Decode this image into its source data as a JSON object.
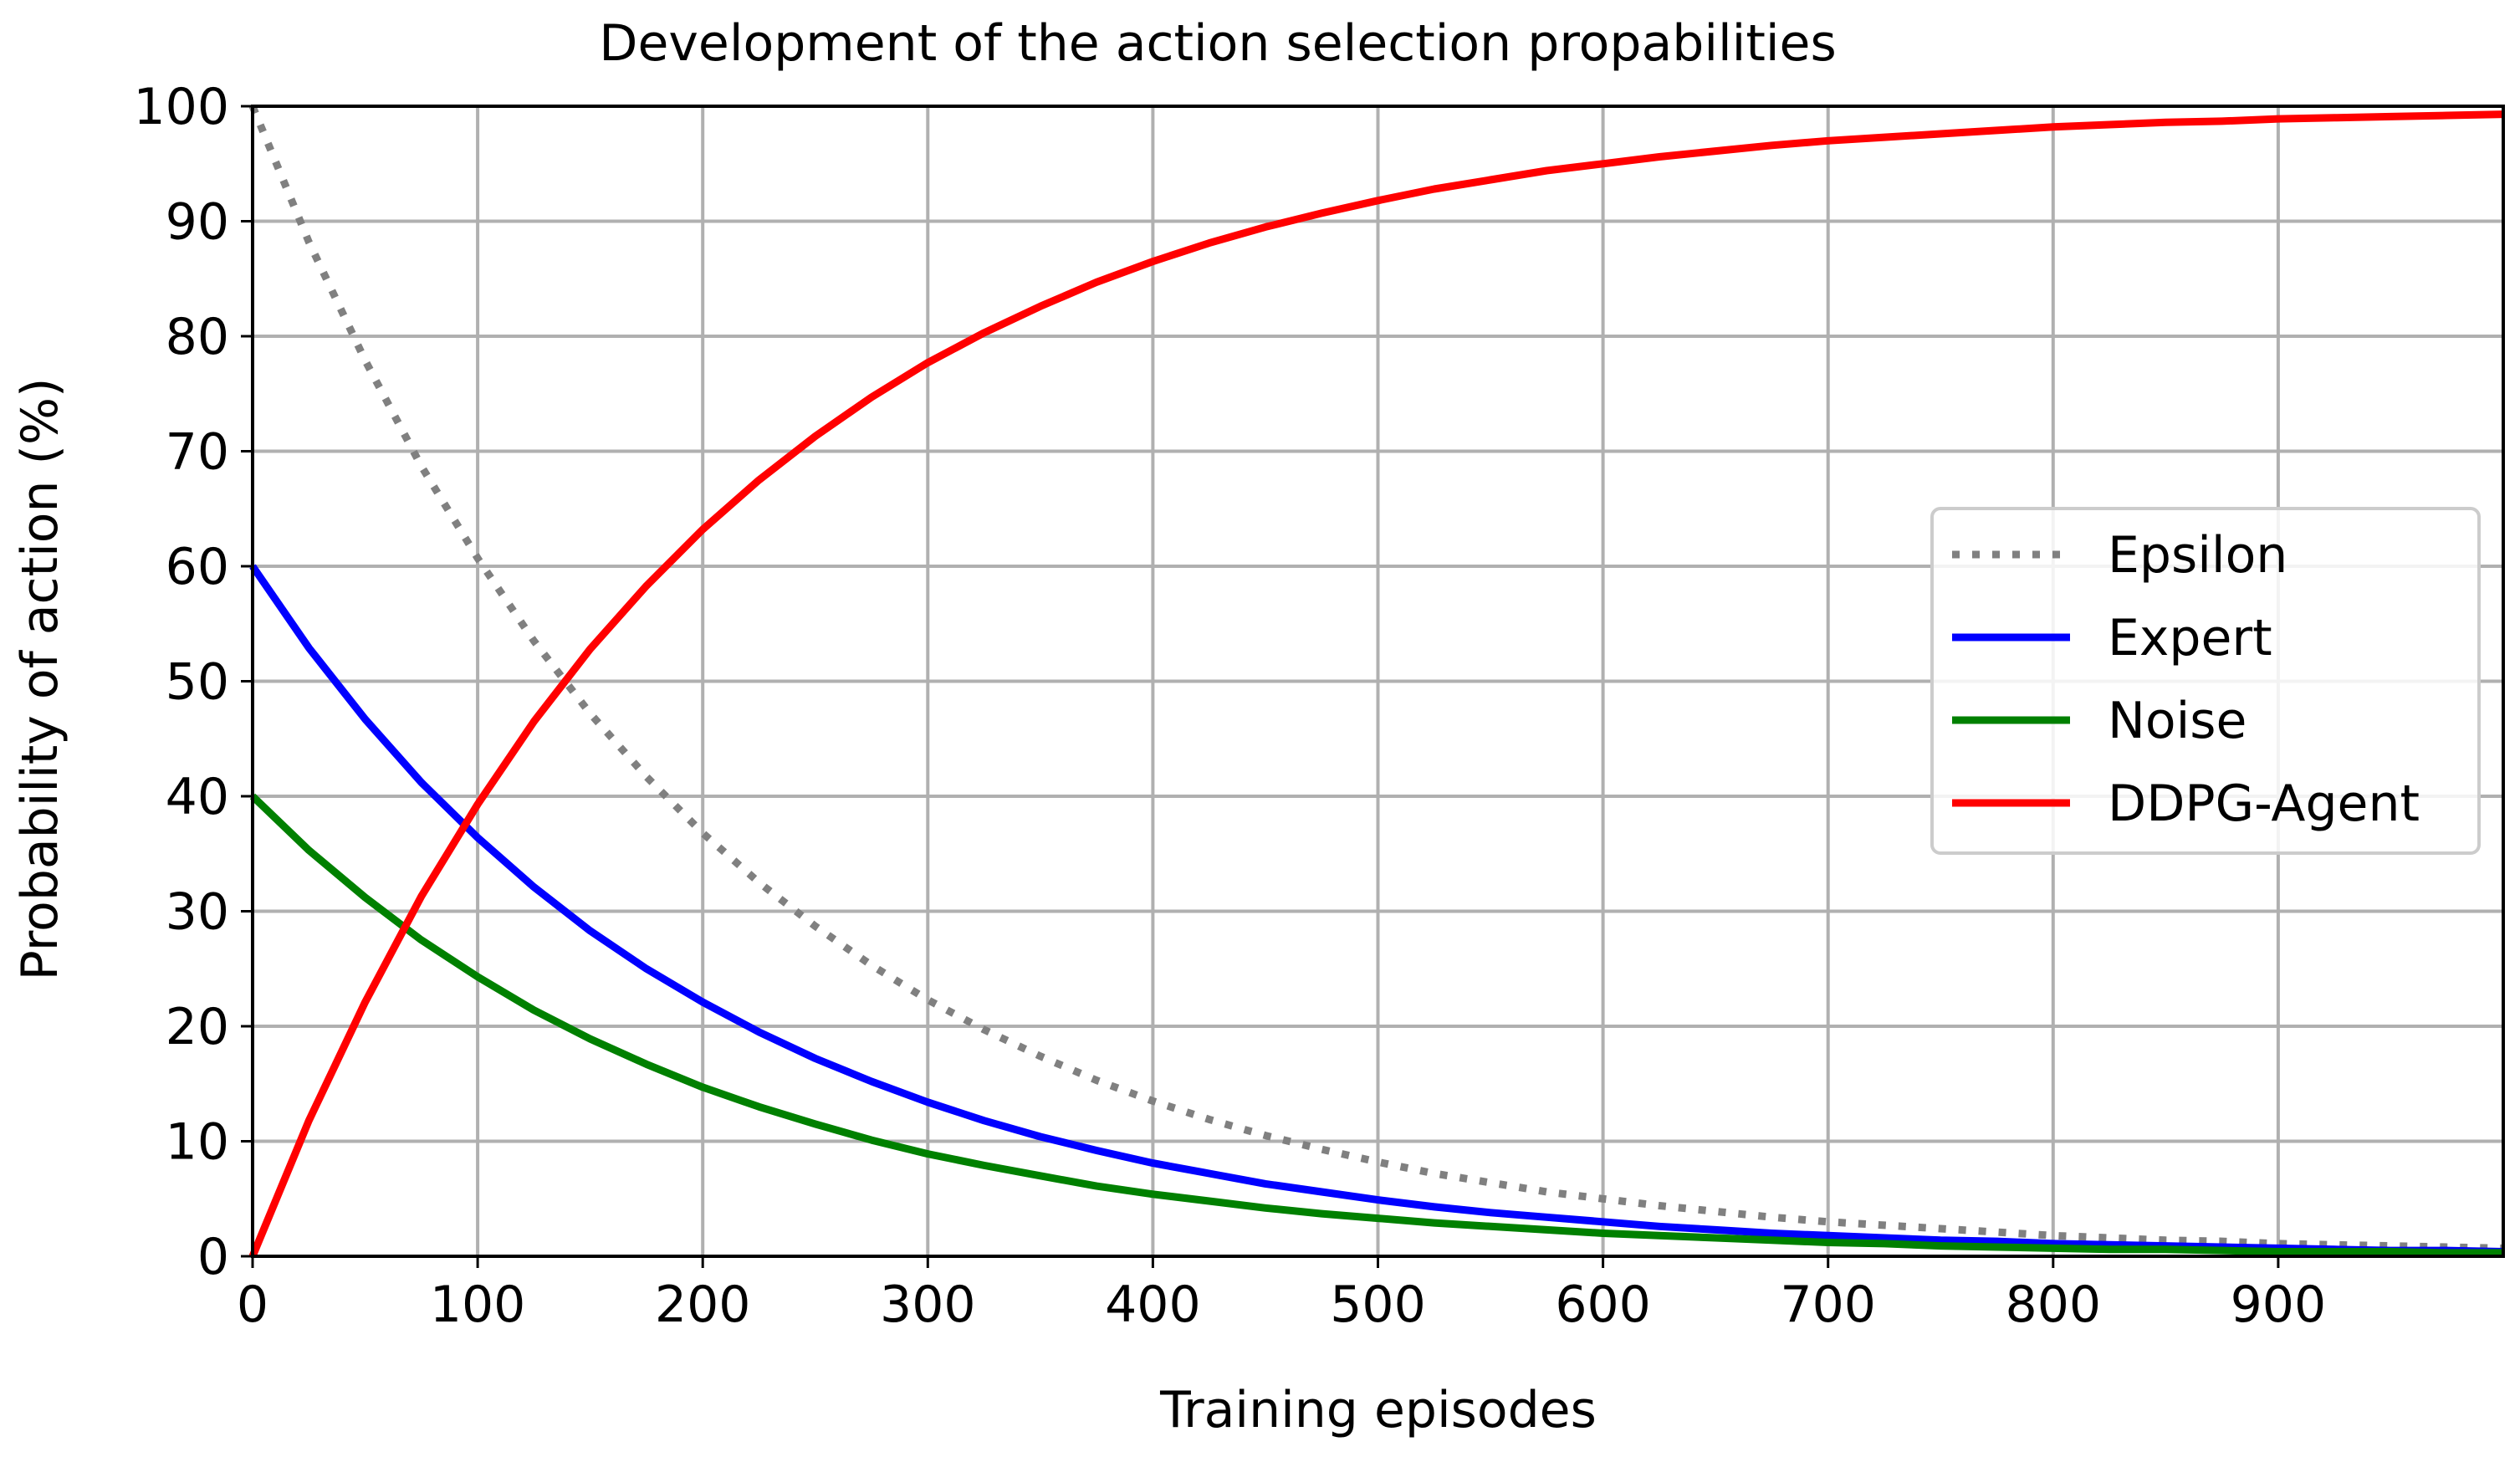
{
  "chart_data": {
    "type": "line",
    "title": "Development of the action selection propabilities",
    "xlabel": "Training episodes",
    "ylabel": "Probability of action (%)",
    "xlim": [
      0,
      1000
    ],
    "ylim": [
      0,
      100
    ],
    "xticks": [
      0,
      100,
      200,
      300,
      400,
      500,
      600,
      700,
      800,
      900
    ],
    "yticks": [
      0,
      10,
      20,
      30,
      40,
      50,
      60,
      70,
      80,
      90,
      100
    ],
    "grid": true,
    "legend_position": "center-right",
    "x": [
      0,
      25,
      50,
      75,
      100,
      125,
      150,
      175,
      200,
      225,
      250,
      275,
      300,
      325,
      350,
      375,
      400,
      425,
      450,
      475,
      500,
      525,
      550,
      575,
      600,
      625,
      650,
      675,
      700,
      725,
      750,
      775,
      800,
      825,
      850,
      875,
      900,
      925,
      950,
      975,
      1000
    ],
    "series": [
      {
        "name": "Epsilon",
        "color": "#808080",
        "style": "dotted",
        "values": [
          100,
          88.2,
          77.9,
          68.7,
          60.7,
          53.5,
          47.2,
          41.7,
          36.8,
          32.5,
          28.7,
          25.3,
          22.3,
          19.7,
          17.4,
          15.3,
          13.5,
          11.9,
          10.5,
          9.3,
          8.2,
          7.2,
          6.4,
          5.6,
          5.0,
          4.4,
          3.9,
          3.4,
          3.0,
          2.7,
          2.4,
          2.1,
          1.8,
          1.6,
          1.4,
          1.3,
          1.1,
          1.0,
          0.9,
          0.8,
          0.7
        ]
      },
      {
        "name": "Expert",
        "color": "#0000ff",
        "style": "solid",
        "values": [
          60,
          52.9,
          46.7,
          41.2,
          36.4,
          32.1,
          28.3,
          25.0,
          22.1,
          19.5,
          17.2,
          15.2,
          13.4,
          11.8,
          10.4,
          9.2,
          8.1,
          7.2,
          6.3,
          5.6,
          4.9,
          4.3,
          3.8,
          3.4,
          3.0,
          2.6,
          2.3,
          2.0,
          1.8,
          1.6,
          1.4,
          1.3,
          1.1,
          1.0,
          0.9,
          0.8,
          0.7,
          0.6,
          0.5,
          0.5,
          0.4
        ]
      },
      {
        "name": "Noise",
        "color": "#008000",
        "style": "solid",
        "values": [
          40,
          35.3,
          31.2,
          27.5,
          24.3,
          21.4,
          18.9,
          16.7,
          14.7,
          13.0,
          11.5,
          10.1,
          8.9,
          7.9,
          7.0,
          6.1,
          5.4,
          4.8,
          4.2,
          3.7,
          3.3,
          2.9,
          2.6,
          2.3,
          2.0,
          1.8,
          1.6,
          1.4,
          1.2,
          1.1,
          0.9,
          0.8,
          0.7,
          0.6,
          0.6,
          0.5,
          0.4,
          0.4,
          0.4,
          0.3,
          0.3
        ]
      },
      {
        "name": "DDPG-Agent",
        "color": "#ff0000",
        "style": "solid",
        "values": [
          0,
          11.8,
          22.1,
          31.3,
          39.3,
          46.5,
          52.8,
          58.3,
          63.2,
          67.5,
          71.3,
          74.7,
          77.7,
          80.3,
          82.6,
          84.7,
          86.5,
          88.1,
          89.5,
          90.7,
          91.8,
          92.8,
          93.6,
          94.4,
          95.0,
          95.6,
          96.1,
          96.6,
          97.0,
          97.3,
          97.6,
          97.9,
          98.2,
          98.4,
          98.6,
          98.7,
          98.9,
          99.0,
          99.1,
          99.2,
          99.3
        ]
      }
    ]
  }
}
